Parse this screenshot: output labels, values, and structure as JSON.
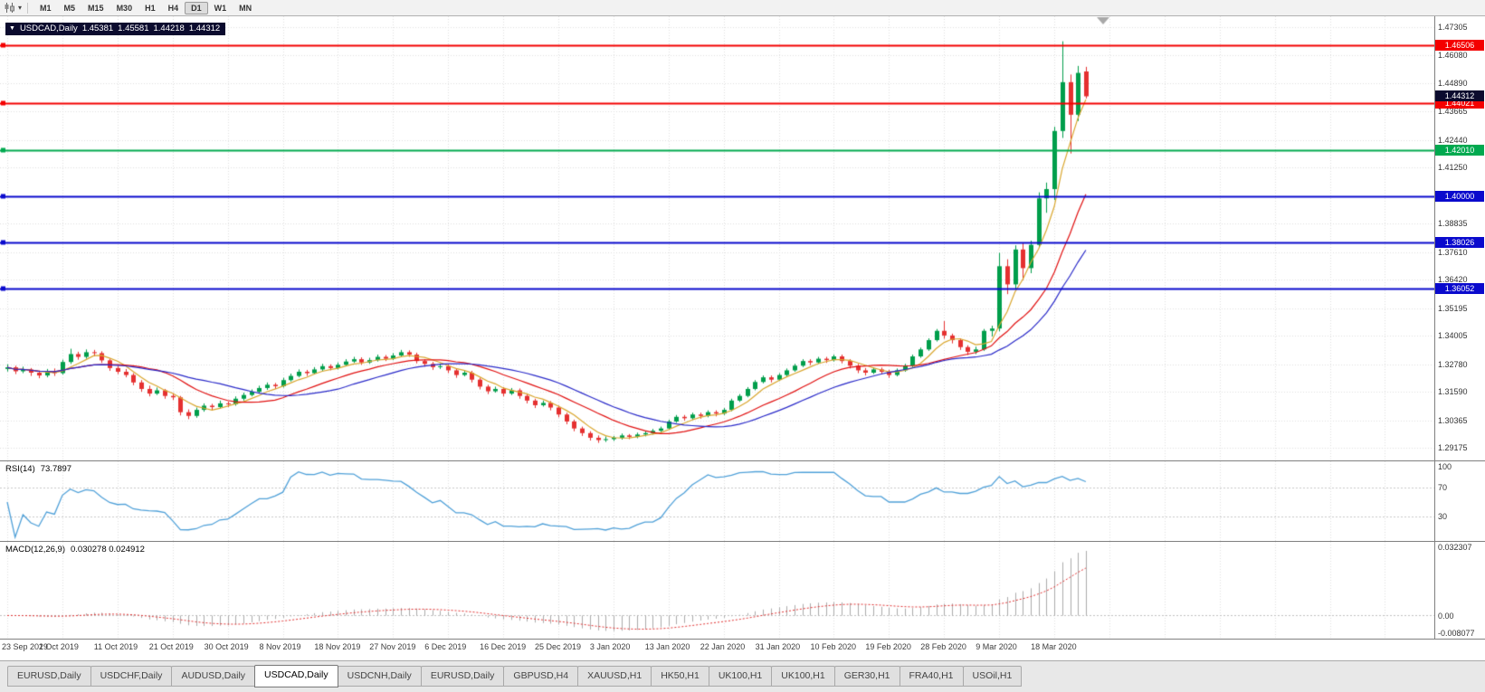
{
  "toolbar": {
    "timeframes": [
      {
        "label": "M1",
        "active": false
      },
      {
        "label": "M5",
        "active": false
      },
      {
        "label": "M15",
        "active": false
      },
      {
        "label": "M30",
        "active": false
      },
      {
        "label": "H1",
        "active": false
      },
      {
        "label": "H4",
        "active": false
      },
      {
        "label": "D1",
        "active": true
      },
      {
        "label": "W1",
        "active": false
      },
      {
        "label": "MN",
        "active": false
      }
    ]
  },
  "title": {
    "caret": "▼",
    "symbol_timeframe": "USDCAD,Daily",
    "open": "1.45381",
    "high": "1.45581",
    "low": "1.44218",
    "close": "1.44312"
  },
  "rsi_panel": {
    "label": "RSI(14)",
    "value": "73.7897"
  },
  "macd_panel": {
    "label": "MACD(12,26,9)",
    "values": "0.030278 0.024912"
  },
  "tabs": [
    {
      "label": "EURUSD,Daily",
      "active": false
    },
    {
      "label": "USDCHF,Daily",
      "active": false
    },
    {
      "label": "AUDUSD,Daily",
      "active": false
    },
    {
      "label": "USDCAD,Daily",
      "active": true
    },
    {
      "label": "USDCNH,Daily",
      "active": false
    },
    {
      "label": "EURUSD,Daily",
      "active": false
    },
    {
      "label": "GBPUSD,H4",
      "active": false
    },
    {
      "label": "XAUUSD,H1",
      "active": false
    },
    {
      "label": "HK50,H1",
      "active": false
    },
    {
      "label": "UK100,H1",
      "active": false
    },
    {
      "label": "UK100,H1",
      "active": false
    },
    {
      "label": "GER30,H1",
      "active": false
    },
    {
      "label": "FRA40,H1",
      "active": false
    },
    {
      "label": "USOil,H1",
      "active": false
    }
  ],
  "chart_data": {
    "type": "candlestick",
    "symbol": "USDCAD",
    "timeframe": "Daily",
    "up_color": "#009E4B",
    "down_color": "#E53030",
    "grid_color": "#dfdfdf",
    "y_range": [
      1.288,
      1.476
    ],
    "y_ticks": [
      1.47305,
      1.4608,
      1.4489,
      1.43665,
      1.4244,
      1.4125,
      1.40025,
      1.38835,
      1.3761,
      1.3642,
      1.35195,
      1.34005,
      1.3278,
      1.3159,
      1.30365,
      1.29175
    ],
    "current_price": 1.44312,
    "current_price_tag_color": "#0b0b2e",
    "horizontal_lines": [
      {
        "value": 1.46506,
        "label": "1.46506",
        "color": "#F40000"
      },
      {
        "value": 1.44021,
        "label": "1.44021",
        "color": "#F40000"
      },
      {
        "value": 1.4201,
        "label": "1.42010",
        "color": "#00A94F"
      },
      {
        "value": 1.4,
        "label": "1.40000",
        "color": "#0A0ACD"
      },
      {
        "value": 1.38026,
        "label": "1.38026",
        "color": "#0A0ACD"
      },
      {
        "value": 1.36052,
        "label": "1.36052",
        "color": "#0A0ACD"
      }
    ],
    "moving_averages": [
      {
        "period": 5,
        "color": "#D9A62E"
      },
      {
        "period": 13,
        "color": "#E01010"
      },
      {
        "period": 21,
        "color": "#2929C8"
      }
    ],
    "x_tick_interval": 7,
    "x_tick_labels": [
      "23 Sep 2019",
      "2 Oct 2019",
      "11 Oct 2019",
      "21 Oct 2019",
      "30 Oct 2019",
      "8 Nov 2019",
      "18 Nov 2019",
      "27 Nov 2019",
      "6 Dec 2019",
      "16 Dec 2019",
      "25 Dec 2019",
      "3 Jan 2020",
      "13 Jan 2020",
      "22 Jan 2020",
      "31 Jan 2020",
      "10 Feb 2020",
      "19 Feb 2020",
      "28 Feb 2020",
      "9 Mar 2020",
      "18 Mar 2020"
    ],
    "candles": [
      [
        1.3258,
        1.3278,
        1.3247,
        1.3265
      ],
      [
        1.3265,
        1.3272,
        1.3236,
        1.3248
      ],
      [
        1.3248,
        1.3268,
        1.324,
        1.3256
      ],
      [
        1.3256,
        1.3262,
        1.3228,
        1.3242
      ],
      [
        1.3242,
        1.3252,
        1.3218,
        1.323
      ],
      [
        1.323,
        1.3258,
        1.3222,
        1.3246
      ],
      [
        1.3246,
        1.326,
        1.3228,
        1.324
      ],
      [
        1.324,
        1.3298,
        1.3234,
        1.3288
      ],
      [
        1.3288,
        1.3345,
        1.328,
        1.3322
      ],
      [
        1.3322,
        1.3332,
        1.3298,
        1.331
      ],
      [
        1.331,
        1.3342,
        1.3302,
        1.333
      ],
      [
        1.333,
        1.334,
        1.3312,
        1.3326
      ],
      [
        1.3326,
        1.3334,
        1.3284,
        1.3295
      ],
      [
        1.3295,
        1.3302,
        1.325,
        1.3262
      ],
      [
        1.3262,
        1.3272,
        1.3236,
        1.3246
      ],
      [
        1.3246,
        1.3258,
        1.3222,
        1.3232
      ],
      [
        1.3232,
        1.324,
        1.3188,
        1.32
      ],
      [
        1.32,
        1.321,
        1.316,
        1.3172
      ],
      [
        1.3172,
        1.3186,
        1.314,
        1.3152
      ],
      [
        1.3152,
        1.3178,
        1.3146,
        1.3166
      ],
      [
        1.3166,
        1.3172,
        1.313,
        1.3142
      ],
      [
        1.3142,
        1.3154,
        1.3124,
        1.3136
      ],
      [
        1.3136,
        1.3142,
        1.3058,
        1.3072
      ],
      [
        1.3072,
        1.3084,
        1.3042,
        1.3056
      ],
      [
        1.3056,
        1.3092,
        1.3048,
        1.3082
      ],
      [
        1.3082,
        1.311,
        1.3074,
        1.31
      ],
      [
        1.31,
        1.3108,
        1.308,
        1.3094
      ],
      [
        1.3094,
        1.3122,
        1.3088,
        1.311
      ],
      [
        1.311,
        1.3118,
        1.3094,
        1.3106
      ],
      [
        1.3106,
        1.314,
        1.31,
        1.313
      ],
      [
        1.313,
        1.3156,
        1.3122,
        1.3146
      ],
      [
        1.3146,
        1.317,
        1.314,
        1.316
      ],
      [
        1.316,
        1.3186,
        1.3152,
        1.3176
      ],
      [
        1.3176,
        1.32,
        1.3168,
        1.319
      ],
      [
        1.319,
        1.3198,
        1.3172,
        1.3184
      ],
      [
        1.3184,
        1.322,
        1.3178,
        1.321
      ],
      [
        1.321,
        1.3238,
        1.3204,
        1.3228
      ],
      [
        1.3228,
        1.3256,
        1.3222,
        1.3246
      ],
      [
        1.3246,
        1.3254,
        1.3228,
        1.324
      ],
      [
        1.324,
        1.3266,
        1.3234,
        1.3256
      ],
      [
        1.3256,
        1.328,
        1.325,
        1.327
      ],
      [
        1.327,
        1.3278,
        1.3252,
        1.3262
      ],
      [
        1.3262,
        1.3286,
        1.3256,
        1.3276
      ],
      [
        1.3276,
        1.33,
        1.327,
        1.329
      ],
      [
        1.329,
        1.331,
        1.3284,
        1.33
      ],
      [
        1.33,
        1.3308,
        1.3276,
        1.3286
      ],
      [
        1.3286,
        1.3306,
        1.328,
        1.3296
      ],
      [
        1.3296,
        1.332,
        1.329,
        1.331
      ],
      [
        1.331,
        1.3318,
        1.3292,
        1.3302
      ],
      [
        1.3302,
        1.3326,
        1.3296,
        1.3316
      ],
      [
        1.3316,
        1.334,
        1.331,
        1.333
      ],
      [
        1.333,
        1.3338,
        1.331,
        1.332
      ],
      [
        1.332,
        1.3328,
        1.3282,
        1.3292
      ],
      [
        1.3292,
        1.33,
        1.3268,
        1.328
      ],
      [
        1.328,
        1.3288,
        1.3254,
        1.3266
      ],
      [
        1.3266,
        1.3282,
        1.3258,
        1.327
      ],
      [
        1.327,
        1.3278,
        1.324,
        1.3252
      ],
      [
        1.3252,
        1.326,
        1.322,
        1.3232
      ],
      [
        1.3232,
        1.3252,
        1.3226,
        1.3242
      ],
      [
        1.3242,
        1.325,
        1.32,
        1.3212
      ],
      [
        1.3212,
        1.322,
        1.317,
        1.3182
      ],
      [
        1.3182,
        1.319,
        1.315,
        1.3162
      ],
      [
        1.3162,
        1.3182,
        1.3156,
        1.3172
      ],
      [
        1.3172,
        1.318,
        1.314,
        1.3152
      ],
      [
        1.3152,
        1.3176,
        1.3146,
        1.3166
      ],
      [
        1.3166,
        1.3174,
        1.313,
        1.3142
      ],
      [
        1.3142,
        1.315,
        1.311,
        1.3122
      ],
      [
        1.3122,
        1.313,
        1.309,
        1.3102
      ],
      [
        1.3102,
        1.3122,
        1.3096,
        1.3112
      ],
      [
        1.3112,
        1.312,
        1.308,
        1.3092
      ],
      [
        1.3092,
        1.31,
        1.305,
        1.3062
      ],
      [
        1.3062,
        1.307,
        1.302,
        1.3032
      ],
      [
        1.3032,
        1.304,
        1.299,
        1.3002
      ],
      [
        1.3002,
        1.301,
        1.297,
        1.2982
      ],
      [
        1.2982,
        1.299,
        1.295,
        1.2962
      ],
      [
        1.2962,
        1.2972,
        1.294,
        1.2952
      ],
      [
        1.2952,
        1.2968,
        1.2944,
        1.2956
      ],
      [
        1.2956,
        1.297,
        1.2948,
        1.2962
      ],
      [
        1.2962,
        1.298,
        1.2954,
        1.2972
      ],
      [
        1.2972,
        1.2978,
        1.2956,
        1.2966
      ],
      [
        1.2966,
        1.2984,
        1.296,
        1.2976
      ],
      [
        1.2976,
        1.299,
        1.2968,
        1.2982
      ],
      [
        1.2982,
        1.3,
        1.2976,
        1.2992
      ],
      [
        1.2992,
        1.301,
        1.2986,
        1.3002
      ],
      [
        1.3002,
        1.304,
        1.2996,
        1.3032
      ],
      [
        1.3032,
        1.306,
        1.3026,
        1.3052
      ],
      [
        1.3052,
        1.306,
        1.3036,
        1.3046
      ],
      [
        1.3046,
        1.307,
        1.304,
        1.3062
      ],
      [
        1.3062,
        1.307,
        1.3044,
        1.3056
      ],
      [
        1.3056,
        1.308,
        1.305,
        1.3072
      ],
      [
        1.3072,
        1.308,
        1.3054,
        1.3066
      ],
      [
        1.3066,
        1.309,
        1.306,
        1.3082
      ],
      [
        1.3082,
        1.313,
        1.3076,
        1.3122
      ],
      [
        1.3122,
        1.315,
        1.3116,
        1.3142
      ],
      [
        1.3142,
        1.318,
        1.3136,
        1.3172
      ],
      [
        1.3172,
        1.321,
        1.3166,
        1.3202
      ],
      [
        1.3202,
        1.323,
        1.3196,
        1.3222
      ],
      [
        1.3222,
        1.323,
        1.32,
        1.3212
      ],
      [
        1.3212,
        1.324,
        1.3206,
        1.3232
      ],
      [
        1.3232,
        1.326,
        1.3226,
        1.3252
      ],
      [
        1.3252,
        1.328,
        1.3246,
        1.3272
      ],
      [
        1.3272,
        1.33,
        1.3266,
        1.3292
      ],
      [
        1.3292,
        1.33,
        1.3274,
        1.3286
      ],
      [
        1.3286,
        1.331,
        1.328,
        1.3302
      ],
      [
        1.3302,
        1.331,
        1.3284,
        1.3296
      ],
      [
        1.3296,
        1.332,
        1.329,
        1.3312
      ],
      [
        1.3312,
        1.332,
        1.3282,
        1.3292
      ],
      [
        1.3292,
        1.33,
        1.326,
        1.3272
      ],
      [
        1.3272,
        1.328,
        1.324,
        1.3252
      ],
      [
        1.3252,
        1.3262,
        1.323,
        1.3242
      ],
      [
        1.3242,
        1.3264,
        1.3236,
        1.3256
      ],
      [
        1.3256,
        1.3264,
        1.3236,
        1.3246
      ],
      [
        1.3246,
        1.3254,
        1.322,
        1.3232
      ],
      [
        1.3232,
        1.326,
        1.3226,
        1.3252
      ],
      [
        1.3252,
        1.328,
        1.3246,
        1.3272
      ],
      [
        1.3272,
        1.332,
        1.3266,
        1.3312
      ],
      [
        1.3312,
        1.335,
        1.3306,
        1.3342
      ],
      [
        1.3342,
        1.339,
        1.3336,
        1.3382
      ],
      [
        1.3382,
        1.343,
        1.3376,
        1.3422
      ],
      [
        1.3422,
        1.3464,
        1.3388,
        1.3402
      ],
      [
        1.3402,
        1.341,
        1.3368,
        1.3382
      ],
      [
        1.3382,
        1.339,
        1.334,
        1.3352
      ],
      [
        1.3352,
        1.336,
        1.3318,
        1.3332
      ],
      [
        1.3332,
        1.3354,
        1.3322,
        1.3342
      ],
      [
        1.3342,
        1.343,
        1.3336,
        1.3422
      ],
      [
        1.3422,
        1.3444,
        1.3398,
        1.3432
      ],
      [
        1.3432,
        1.3758,
        1.342,
        1.37
      ],
      [
        1.37,
        1.373,
        1.358,
        1.3622
      ],
      [
        1.3622,
        1.379,
        1.36,
        1.3772
      ],
      [
        1.3772,
        1.38,
        1.364,
        1.3692
      ],
      [
        1.3692,
        1.381,
        1.367,
        1.3792
      ],
      [
        1.3792,
        1.4018,
        1.378,
        1.3992
      ],
      [
        1.3992,
        1.406,
        1.393,
        1.4032
      ],
      [
        1.4032,
        1.43,
        1.3985,
        1.4282
      ],
      [
        1.4282,
        1.4668,
        1.4252,
        1.4492
      ],
      [
        1.4492,
        1.4525,
        1.4185,
        1.4352
      ],
      [
        1.4352,
        1.4562,
        1.4325,
        1.4532
      ],
      [
        1.45381,
        1.45581,
        1.44218,
        1.44312
      ]
    ],
    "indicators": {
      "rsi": {
        "period": 14,
        "value": 73.7897,
        "axis_labels": [
          100,
          70,
          30
        ],
        "overbought": 70,
        "oversold": 30,
        "range": [
          0,
          100
        ],
        "line_color": "#4FA0D8"
      },
      "macd": {
        "fast": 12,
        "slow": 26,
        "signal": 9,
        "macd_value": 0.030278,
        "signal_value": 0.024912,
        "axis_labels": [
          "0.032307",
          "0.00",
          "-0.008077"
        ],
        "axis_max": 0.032307,
        "axis_min": -0.008077,
        "histogram_color": "#ABABAB",
        "signal_color": "#E03030"
      }
    }
  }
}
